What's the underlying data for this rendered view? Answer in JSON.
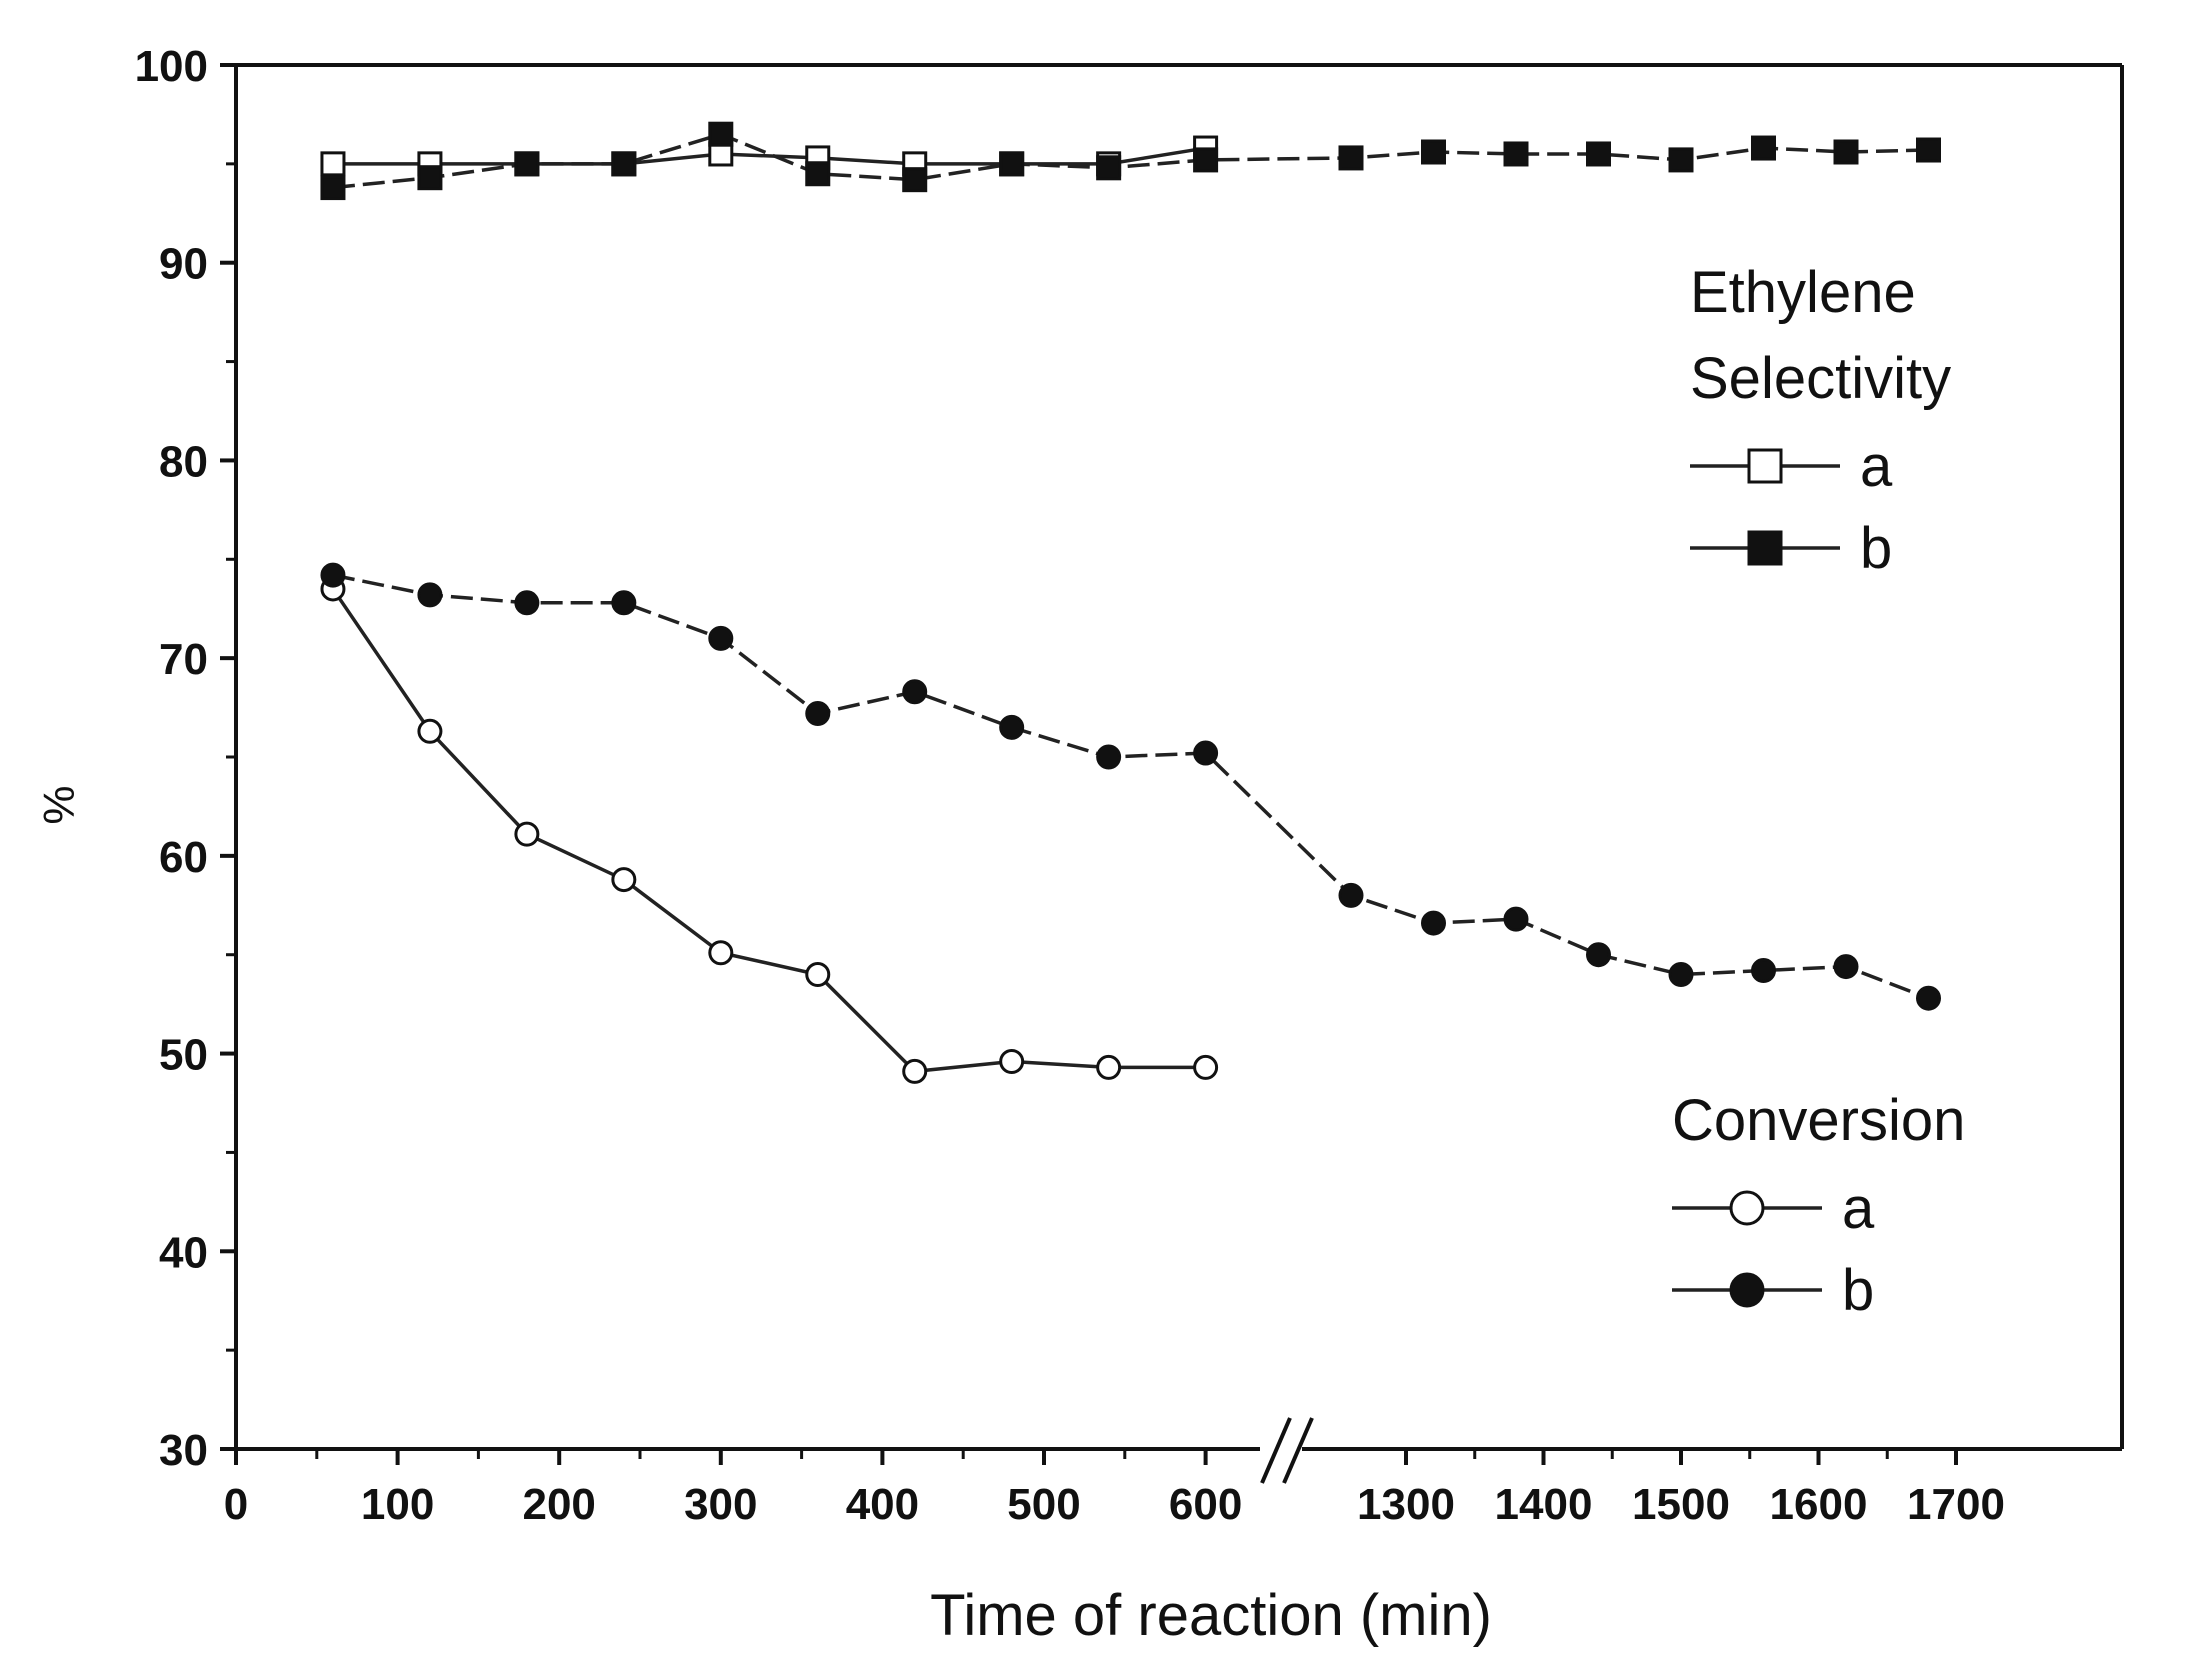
{
  "chart_data": {
    "type": "line",
    "xlabel": "Time of reaction (min)",
    "ylabel": "%",
    "ylim": [
      30,
      100
    ],
    "grid": false,
    "axis_break": true,
    "y_ticks": [
      30,
      40,
      50,
      60,
      70,
      80,
      90,
      100
    ],
    "x_ticks_left": [
      0,
      100,
      200,
      300,
      400,
      500,
      600
    ],
    "x_ticks_right": [
      1300,
      1400,
      1500,
      1600,
      1700
    ],
    "legends": [
      {
        "title": [
          "Ethylene",
          "Selectivity"
        ],
        "entries": [
          "a",
          "b"
        ],
        "marker": "square",
        "placement": "upper-right"
      },
      {
        "title": [
          "Conversion"
        ],
        "entries": [
          "a",
          "b"
        ],
        "marker": "circle",
        "placement": "lower-right"
      }
    ],
    "series": [
      {
        "group": "Ethylene Selectivity",
        "name": "a",
        "marker": "square",
        "fill": "open",
        "x": [
          60,
          120,
          180,
          240,
          300,
          360,
          420,
          480,
          540,
          600
        ],
        "y": [
          95.0,
          95.0,
          95.0,
          95.0,
          95.5,
          95.3,
          95.0,
          95.0,
          95.0,
          95.8
        ]
      },
      {
        "group": "Ethylene Selectivity",
        "name": "b",
        "marker": "square",
        "fill": "filled",
        "x": [
          60,
          120,
          180,
          240,
          300,
          360,
          420,
          480,
          540,
          600,
          1260,
          1320,
          1380,
          1440,
          1500,
          1560,
          1620,
          1680
        ],
        "y": [
          93.8,
          94.3,
          95.0,
          95.0,
          96.5,
          94.5,
          94.2,
          95.0,
          94.8,
          95.2,
          95.3,
          95.6,
          95.5,
          95.5,
          95.2,
          95.8,
          95.6,
          95.7
        ]
      },
      {
        "group": "Conversion",
        "name": "a",
        "marker": "circle",
        "fill": "open",
        "x": [
          60,
          120,
          180,
          240,
          300,
          360,
          420,
          480,
          540,
          600
        ],
        "y": [
          73.5,
          66.3,
          61.1,
          58.8,
          55.1,
          54.0,
          49.1,
          49.6,
          49.3,
          49.3
        ]
      },
      {
        "group": "Conversion",
        "name": "b",
        "marker": "circle",
        "fill": "filled",
        "x": [
          60,
          120,
          180,
          240,
          300,
          360,
          420,
          480,
          540,
          600,
          1260,
          1320,
          1380,
          1440,
          1500,
          1560,
          1620,
          1680
        ],
        "y": [
          74.2,
          73.2,
          72.8,
          72.8,
          71.0,
          67.2,
          68.3,
          66.5,
          65.0,
          65.2,
          58.0,
          56.6,
          56.8,
          55.0,
          54.0,
          54.2,
          54.4,
          52.8
        ]
      }
    ]
  }
}
